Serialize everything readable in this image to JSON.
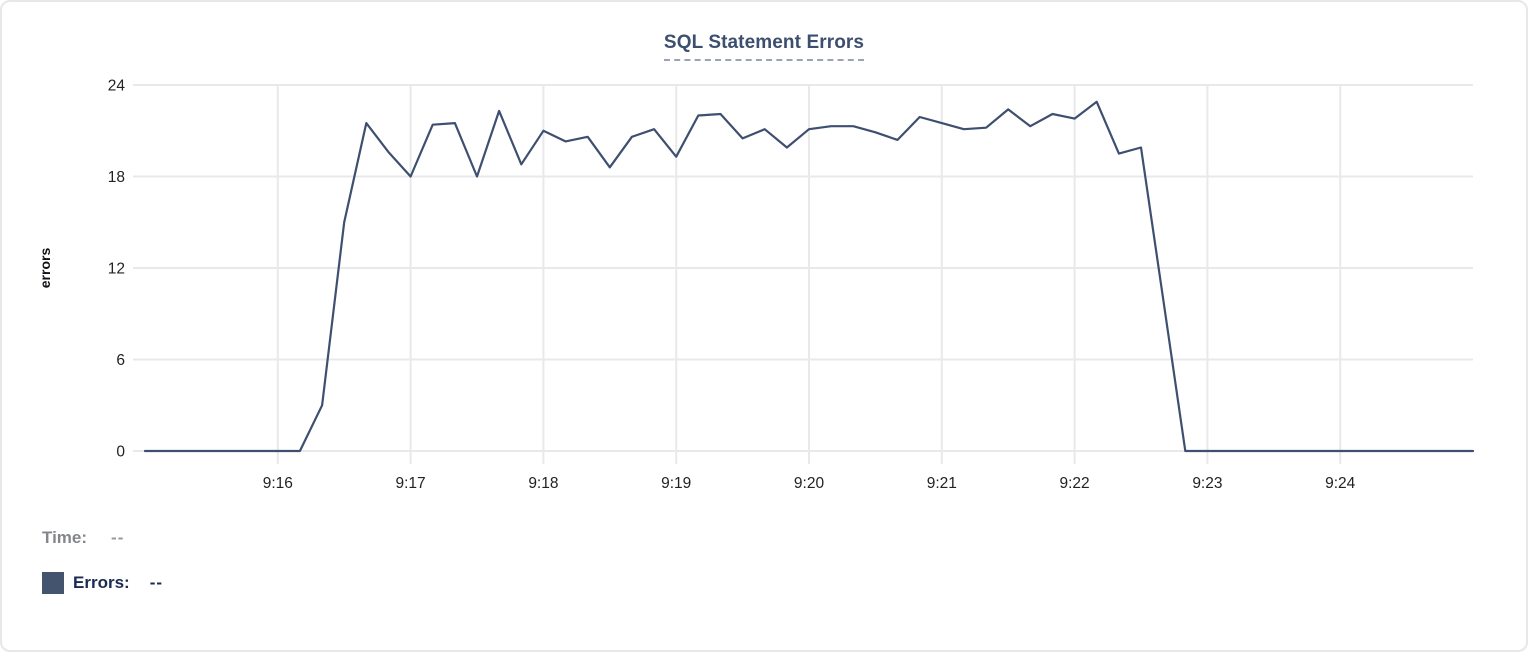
{
  "chart_data": {
    "type": "line",
    "title": "SQL Statement Errors",
    "xlabel": "",
    "ylabel": "errors",
    "ylim": [
      0,
      24
    ],
    "yticks": [
      0,
      6,
      12,
      18,
      24
    ],
    "xticks": [
      "9:16",
      "9:17",
      "9:18",
      "9:19",
      "9:20",
      "9:21",
      "9:22",
      "9:23",
      "9:24"
    ],
    "xtick_indices": [
      6,
      12,
      18,
      24,
      30,
      36,
      42,
      48,
      54
    ],
    "grid": true,
    "legend_position": "bottom-left",
    "x": [
      "9:15:00",
      "9:15:10",
      "9:15:20",
      "9:15:30",
      "9:15:40",
      "9:15:50",
      "9:16:00",
      "9:16:10",
      "9:16:20",
      "9:16:30",
      "9:16:40",
      "9:16:50",
      "9:17:00",
      "9:17:10",
      "9:17:20",
      "9:17:30",
      "9:17:40",
      "9:17:50",
      "9:18:00",
      "9:18:10",
      "9:18:20",
      "9:18:30",
      "9:18:40",
      "9:18:50",
      "9:19:00",
      "9:19:10",
      "9:19:20",
      "9:19:30",
      "9:19:40",
      "9:19:50",
      "9:20:00",
      "9:20:10",
      "9:20:20",
      "9:20:30",
      "9:20:40",
      "9:20:50",
      "9:21:00",
      "9:21:10",
      "9:21:20",
      "9:21:30",
      "9:21:40",
      "9:21:50",
      "9:22:00",
      "9:22:10",
      "9:22:20",
      "9:22:30",
      "9:22:40",
      "9:22:50",
      "9:23:00",
      "9:23:10",
      "9:23:20",
      "9:23:30",
      "9:23:40",
      "9:23:50",
      "9:24:00",
      "9:24:10",
      "9:24:20",
      "9:24:30",
      "9:24:40",
      "9:24:50",
      "9:25:00"
    ],
    "series": [
      {
        "name": "Errors",
        "values": [
          0,
          0,
          0,
          0,
          0,
          0,
          0,
          0,
          3,
          15,
          21.5,
          19.6,
          18,
          21.4,
          21.5,
          18,
          22.3,
          18.8,
          21,
          20.3,
          20.6,
          18.6,
          20.6,
          21.1,
          19.3,
          22,
          22.1,
          20.5,
          21.1,
          19.9,
          21.1,
          21.3,
          21.3,
          20.9,
          20.4,
          21.9,
          21.5,
          21.1,
          21.2,
          22.4,
          21.3,
          22.1,
          21.8,
          22.9,
          19.5,
          19.9,
          10,
          0,
          0,
          0,
          0,
          0,
          0,
          0,
          0,
          0,
          0,
          0,
          0,
          0,
          0
        ]
      }
    ],
    "colors": {
      "line": "#3e4f6f",
      "grid": "#e9e9eb",
      "tick_text": "#202226",
      "axis_label": "#0f1114"
    }
  },
  "footer": {
    "time_label": "Time:",
    "time_value": "--",
    "errors_label": "Errors:",
    "errors_value": "--",
    "swatch_color": "#44536e"
  }
}
